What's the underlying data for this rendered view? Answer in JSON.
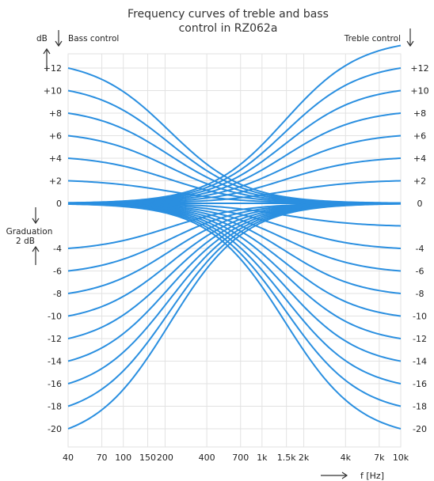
{
  "chart_data": {
    "type": "line",
    "title_lines": [
      "Frequency curves of treble and bass",
      "control in RZ062a"
    ],
    "xscale": "log",
    "xlim": [
      40,
      10000
    ],
    "ylim": [
      -21,
      14
    ],
    "grid": true,
    "x_ticks": [
      {
        "value": 40,
        "label": "40"
      },
      {
        "value": 70,
        "label": "70"
      },
      {
        "value": 100,
        "label": "100"
      },
      {
        "value": 150,
        "label": "150"
      },
      {
        "value": 200,
        "label": "200"
      },
      {
        "value": 400,
        "label": "400"
      },
      {
        "value": 700,
        "label": "700"
      },
      {
        "value": 1000,
        "label": "1k"
      },
      {
        "value": 1500,
        "label": "1.5k"
      },
      {
        "value": 2000,
        "label": "2k"
      },
      {
        "value": 4000,
        "label": "4k"
      },
      {
        "value": 7000,
        "label": "7k"
      },
      {
        "value": 10000,
        "label": "10k"
      }
    ],
    "y_ticks": [
      {
        "value": 12,
        "label": "+12"
      },
      {
        "value": 10,
        "label": "+10"
      },
      {
        "value": 8,
        "label": "+8"
      },
      {
        "value": 6,
        "label": "+6"
      },
      {
        "value": 4,
        "label": "+4"
      },
      {
        "value": 2,
        "label": "+2"
      },
      {
        "value": 0,
        "label": "0"
      },
      {
        "value": -4,
        "label": "-4"
      },
      {
        "value": -6,
        "label": "-6"
      },
      {
        "value": -8,
        "label": "-8"
      },
      {
        "value": -10,
        "label": "-10"
      },
      {
        "value": -12,
        "label": "-12"
      },
      {
        "value": -14,
        "label": "-14"
      },
      {
        "value": -16,
        "label": "-16"
      },
      {
        "value": -18,
        "label": "-18"
      },
      {
        "value": -20,
        "label": "-20"
      }
    ],
    "y_unit_label": "dB",
    "bass_label": "Bass control",
    "treble_label": "Treble control",
    "graduation_label_1": "Graduation",
    "graduation_label_2": "2 dB",
    "x_unit_label": "f  [Hz]",
    "crossover_hz": 560,
    "bass_levels": [
      12,
      10,
      8,
      6,
      4,
      2,
      -4,
      -6,
      -8,
      -10,
      -12,
      -14,
      -16,
      -18,
      -20
    ],
    "treble_levels": [
      14,
      12,
      10,
      8,
      6,
      4,
      2,
      -2,
      -4,
      -6,
      -8,
      -10,
      -12,
      -14,
      -16,
      -18,
      -20
    ],
    "color": "#2a8fe0"
  }
}
